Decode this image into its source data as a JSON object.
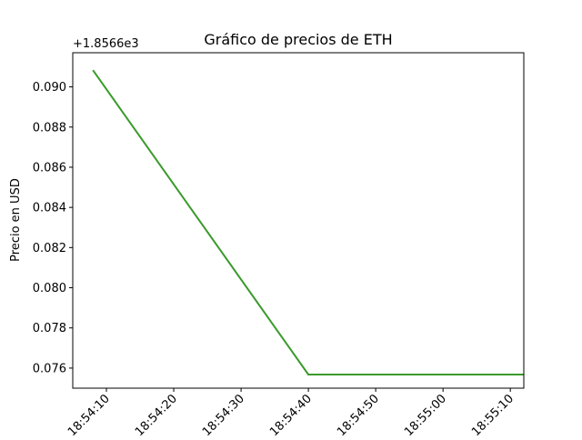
{
  "chart_data": {
    "type": "line",
    "title": "Gráfico de precios de ETH",
    "xlabel": "",
    "ylabel": "Precio en USD",
    "offset_label": "+1.8566e3",
    "y_offset": 1856.6,
    "x_tick_labels": [
      "18:54:10",
      "18:54:20",
      "18:54:30",
      "18:54:40",
      "18:54:50",
      "18:55:00",
      "18:55:10"
    ],
    "y_tick_labels": [
      "0.076",
      "0.078",
      "0.080",
      "0.082",
      "0.084",
      "0.086",
      "0.088",
      "0.090"
    ],
    "x_ticks": [
      "18:54:10",
      "18:54:20",
      "18:54:30",
      "18:54:40",
      "18:54:50",
      "18:55:00",
      "18:55:10"
    ],
    "y_ticks": [
      0.076,
      0.078,
      0.08,
      0.082,
      0.084,
      0.086,
      0.088,
      0.09
    ],
    "xlim": [
      "18:54:05",
      "18:55:12"
    ],
    "ylim": [
      0.075,
      0.0917
    ],
    "grid": false,
    "series": [
      {
        "color": "#3a9a2b",
        "x": [
          "18:54:08",
          "18:54:40",
          "18:55:12"
        ],
        "y": [
          0.09083,
          0.07568,
          0.07568
        ]
      }
    ]
  }
}
